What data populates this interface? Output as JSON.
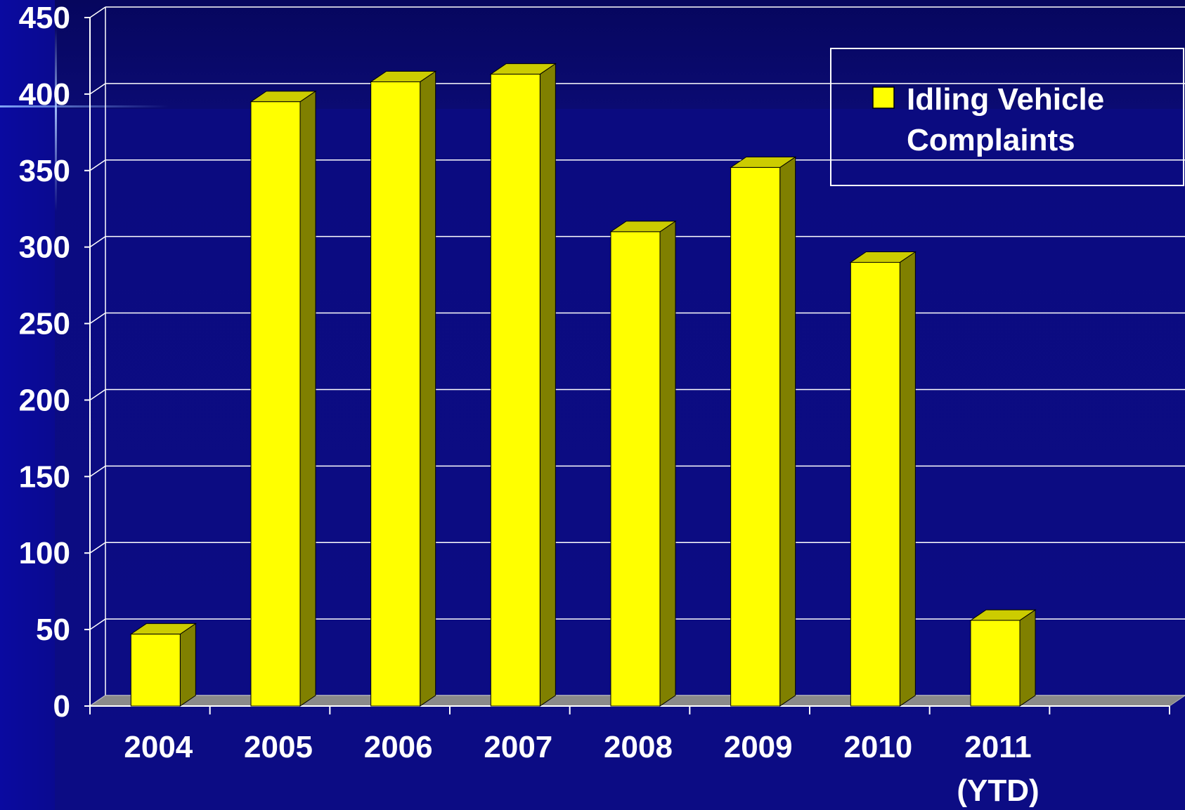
{
  "chart_data": {
    "type": "bar",
    "categories": [
      "2004",
      "2005",
      "2006",
      "2007",
      "2008",
      "2009",
      "2010",
      "2011\n(YTD)"
    ],
    "series": [
      {
        "name": "Idling Vehicle Complaints",
        "values": [
          47,
          395,
          408,
          413,
          310,
          352,
          290,
          56
        ]
      }
    ],
    "ylim": [
      0,
      450
    ],
    "yticks": [
      0,
      50,
      100,
      150,
      200,
      250,
      300,
      350,
      400,
      450
    ],
    "grid": true,
    "legend_position": "top-right",
    "colors": {
      "bar_front": "#ffff00",
      "bar_top": "#cccc00",
      "bar_side": "#808000",
      "floor": "#8a8a8a",
      "grid": "#ffffff",
      "text": "#ffffff"
    }
  }
}
